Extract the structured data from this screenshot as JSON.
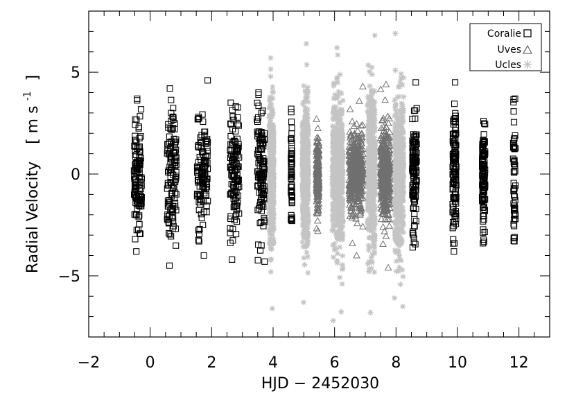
{
  "chart_data": {
    "type": "scatter",
    "xlabel": "HJD − 2452030",
    "ylabel": "Radial Velocity",
    "ylabel_unit": "[ m s",
    "ylabel_unit_exp": "-1",
    "ylabel_unit_close": "]",
    "xlim": [
      -2,
      13
    ],
    "ylim": [
      -8,
      8
    ],
    "x_ticks": [
      -2,
      0,
      2,
      4,
      6,
      8,
      10,
      12
    ],
    "x_tick_labels": [
      "−2",
      "0",
      "2",
      "4",
      "6",
      "8",
      "10",
      "12"
    ],
    "y_ticks": [
      -5,
      0,
      5
    ],
    "y_tick_labels": [
      "−5",
      "0",
      "5"
    ],
    "grid": false,
    "legend_position": "top-right",
    "series": [
      {
        "name": "Coralie",
        "marker": "square",
        "color": "#000000",
        "nights": [
          {
            "x": -0.4,
            "width": 0.25,
            "y_min": -3.8,
            "y_max": 3.7,
            "sd": 1.4
          },
          {
            "x": 0.7,
            "width": 0.3,
            "y_min": -4.5,
            "y_max": 4.2,
            "sd": 1.4
          },
          {
            "x": 1.7,
            "width": 0.35,
            "y_min": -4.0,
            "y_max": 4.6,
            "sd": 1.4
          },
          {
            "x": 2.75,
            "width": 0.3,
            "y_min": -4.2,
            "y_max": 3.5,
            "sd": 1.4
          },
          {
            "x": 3.6,
            "width": 0.25,
            "y_min": -4.3,
            "y_max": 4.0,
            "sd": 1.4
          },
          {
            "x": 4.6,
            "width": 0.04,
            "y_min": -2.3,
            "y_max": 3.2,
            "sd": 1.3
          },
          {
            "x": 8.6,
            "width": 0.15,
            "y_min": -3.6,
            "y_max": 4.5,
            "sd": 1.4
          },
          {
            "x": 9.9,
            "width": 0.12,
            "y_min": -3.8,
            "y_max": 4.5,
            "sd": 1.5
          },
          {
            "x": 10.85,
            "width": 0.1,
            "y_min": -3.4,
            "y_max": 2.6,
            "sd": 1.3
          },
          {
            "x": 11.85,
            "width": 0.08,
            "y_min": -3.3,
            "y_max": 3.7,
            "sd": 1.6
          }
        ]
      },
      {
        "name": "Uves",
        "marker": "triangle",
        "color": "#707070",
        "nights": [
          {
            "x": 5.45,
            "width": 0.08,
            "y_min": -2.8,
            "y_max": 2.7,
            "sd": 0.9
          },
          {
            "x": 6.7,
            "width": 0.45,
            "y_min": -4.0,
            "y_max": 4.3,
            "sd": 1.0
          },
          {
            "x": 7.65,
            "width": 0.3,
            "y_min": -4.6,
            "y_max": 4.4,
            "sd": 1.1
          }
        ]
      },
      {
        "name": "Ucles",
        "marker": "asterisk",
        "color": "#c4c4c4",
        "nights": [
          {
            "x": 3.95,
            "width": 0.15,
            "y_min": -6.6,
            "y_max": 5.7,
            "sd": 1.6
          },
          {
            "x": 5.05,
            "width": 0.2,
            "y_min": -6.3,
            "y_max": 6.4,
            "sd": 1.7
          },
          {
            "x": 6.1,
            "width": 0.35,
            "y_min": -7.2,
            "y_max": 6.2,
            "sd": 1.8
          },
          {
            "x": 7.2,
            "width": 0.25,
            "y_min": -6.8,
            "y_max": 6.8,
            "sd": 1.8
          },
          {
            "x": 8.1,
            "width": 0.3,
            "y_min": -6.5,
            "y_max": 6.9,
            "sd": 1.8
          }
        ]
      }
    ]
  }
}
